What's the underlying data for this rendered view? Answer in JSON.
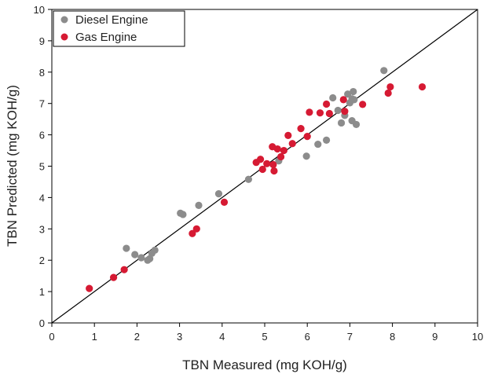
{
  "chart_data": {
    "type": "scatter",
    "xlabel": "TBN Measured (mg KOH/g)",
    "ylabel": "TBN Predicted (mg KOH/g)",
    "xlim": [
      0,
      10
    ],
    "ylim": [
      0,
      10
    ],
    "xticks": [
      0,
      1,
      2,
      3,
      4,
      5,
      6,
      7,
      8,
      9,
      10
    ],
    "yticks": [
      0,
      1,
      2,
      3,
      4,
      5,
      6,
      7,
      8,
      9,
      10
    ],
    "reference_line": "y = x",
    "grid": false,
    "legend_position": "top-left",
    "series": [
      {
        "name": "Diesel Engine",
        "color": "#8c8c8c",
        "points": [
          [
            1.75,
            2.38
          ],
          [
            1.95,
            2.18
          ],
          [
            2.1,
            2.08
          ],
          [
            2.25,
            2.0
          ],
          [
            2.3,
            2.05
          ],
          [
            2.35,
            2.22
          ],
          [
            2.42,
            2.32
          ],
          [
            3.02,
            3.5
          ],
          [
            3.08,
            3.46
          ],
          [
            3.45,
            3.75
          ],
          [
            3.92,
            4.12
          ],
          [
            4.62,
            4.58
          ],
          [
            5.33,
            5.17
          ],
          [
            5.98,
            5.32
          ],
          [
            6.25,
            5.7
          ],
          [
            6.45,
            5.83
          ],
          [
            6.6,
            7.18
          ],
          [
            6.72,
            6.78
          ],
          [
            6.8,
            6.38
          ],
          [
            6.88,
            6.62
          ],
          [
            6.95,
            7.3
          ],
          [
            7.0,
            7.02
          ],
          [
            7.05,
            6.45
          ],
          [
            7.05,
            7.15
          ],
          [
            7.08,
            7.38
          ],
          [
            7.1,
            7.12
          ],
          [
            7.15,
            6.33
          ],
          [
            7.8,
            8.05
          ]
        ]
      },
      {
        "name": "Gas Engine",
        "color": "#d61a33",
        "points": [
          [
            0.88,
            1.1
          ],
          [
            1.45,
            1.45
          ],
          [
            1.7,
            1.7
          ],
          [
            3.3,
            2.85
          ],
          [
            3.4,
            3.0
          ],
          [
            4.05,
            3.85
          ],
          [
            4.8,
            5.12
          ],
          [
            4.9,
            5.22
          ],
          [
            4.95,
            4.9
          ],
          [
            5.05,
            5.08
          ],
          [
            5.18,
            5.62
          ],
          [
            5.2,
            5.05
          ],
          [
            5.22,
            4.85
          ],
          [
            5.3,
            5.55
          ],
          [
            5.38,
            5.3
          ],
          [
            5.45,
            5.5
          ],
          [
            5.55,
            5.98
          ],
          [
            5.65,
            5.72
          ],
          [
            5.85,
            6.2
          ],
          [
            6.0,
            5.95
          ],
          [
            6.05,
            6.72
          ],
          [
            6.3,
            6.7
          ],
          [
            6.45,
            6.98
          ],
          [
            6.52,
            6.68
          ],
          [
            6.85,
            7.12
          ],
          [
            6.88,
            6.75
          ],
          [
            7.3,
            6.97
          ],
          [
            7.9,
            7.33
          ],
          [
            7.95,
            7.53
          ],
          [
            8.7,
            7.53
          ]
        ]
      }
    ]
  }
}
